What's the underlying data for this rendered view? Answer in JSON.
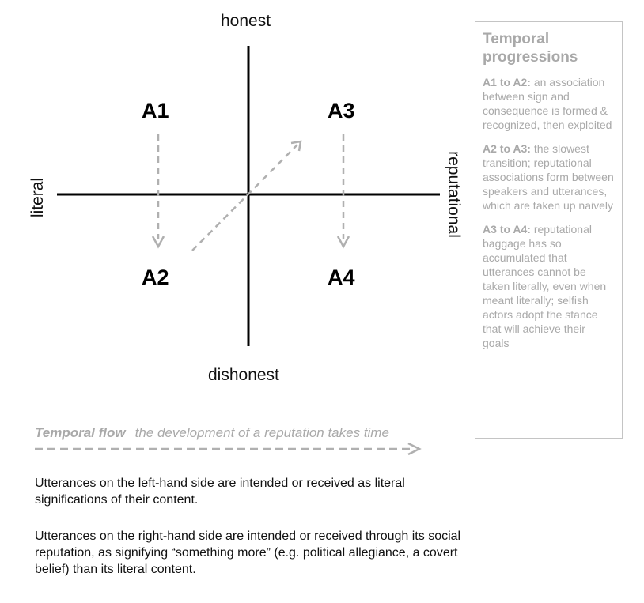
{
  "diagram": {
    "axes": {
      "top": "honest",
      "bottom": "dishonest",
      "left": "literal",
      "right": "reputational"
    },
    "quadrants": [
      "A1",
      "A2",
      "A3",
      "A4"
    ],
    "line_color": "#000000",
    "arrow_color": "#b0b0b0"
  },
  "panel": {
    "title": "Temporal progressions",
    "entries": [
      {
        "key": "A1 to A2:",
        "text": " an association between sign and consequence is formed & recognized, then exploited"
      },
      {
        "key": "A2 to A3:",
        "text": " the slowest transition; reputational associations form between speakers and utterances, which are taken up naively"
      },
      {
        "key": "A3 to A4:",
        "text": " reputational baggage has so accumulated that utterances cannot be taken literally, even when meant literally; selfish actors adopt the stance that will achieve their goals"
      }
    ],
    "text_color": "#a9a9a9",
    "border_color": "#c4c4c4"
  },
  "flow": {
    "label": "Temporal flow",
    "text": "the development of a reputation takes time"
  },
  "notes": [
    "Utterances on the left-hand side are intended or received as literal significations of their content.",
    "Utterances on the right-hand side are intended or received through its social reputation, as signifying “something more” (e.g. political allegiance, a covert belief) than its literal content."
  ]
}
